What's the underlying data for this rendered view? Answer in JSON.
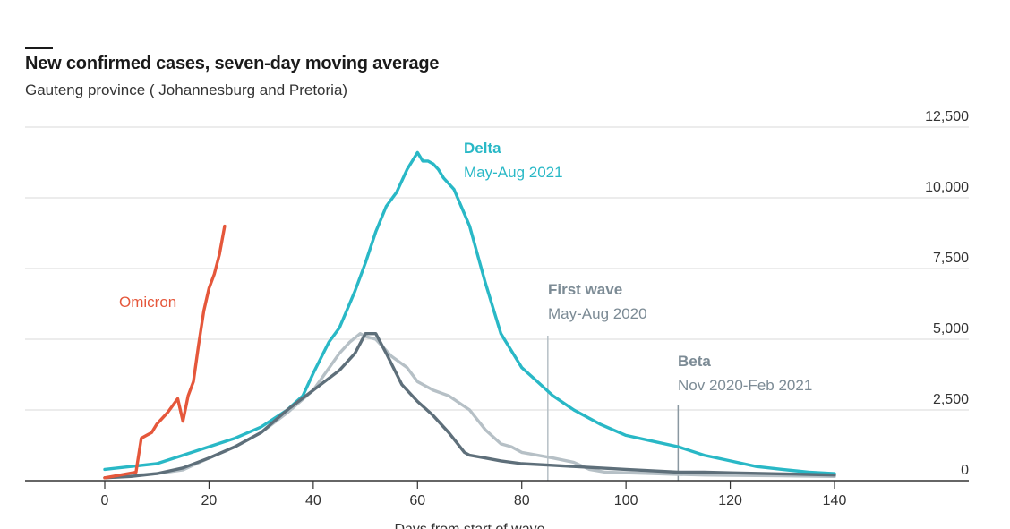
{
  "header": {
    "title": "New confirmed cases, seven-day moving average",
    "subtitle": "Gauteng province ( Johannesburg and Pretoria)"
  },
  "chart_data": {
    "type": "line",
    "title": "New confirmed cases, seven-day moving average",
    "subtitle": "Gauteng province ( Johannesburg and Pretoria)",
    "xlabel": "Days from start of wave",
    "ylabel": "",
    "xlim": [
      -15,
      165
    ],
    "ylim": [
      0,
      12500
    ],
    "x_ticks": [
      0,
      20,
      40,
      60,
      80,
      100,
      120,
      140
    ],
    "x_tick_labels": [
      "0",
      "20",
      "40",
      "60",
      "80",
      "100",
      "120",
      "140"
    ],
    "y_ticks": [
      0,
      2500,
      5000,
      7500,
      10000,
      12500
    ],
    "y_tick_labels": [
      "0",
      "2,500",
      "5,000",
      "7,500",
      "10,000",
      "12,500"
    ],
    "grid": "horizontal",
    "y_axis_side": "right",
    "colors": {
      "delta": "#29b8c6",
      "first_wave": "#b6c0c6",
      "beta": "#5e6f7a",
      "omicron": "#e5573b",
      "grid": "#d9d9d9",
      "axis": "#333333",
      "label_grey": "#7c8b95"
    },
    "series": [
      {
        "name": "First wave",
        "label": "First wave",
        "period": "May-Aug 2020",
        "color": "#b6c0c6",
        "x": [
          0,
          5,
          10,
          15,
          20,
          25,
          30,
          35,
          40,
          45,
          47,
          49,
          50,
          52,
          55,
          58,
          60,
          63,
          66,
          70,
          73,
          76,
          78,
          80,
          83,
          86,
          90,
          93,
          96,
          100,
          105,
          110,
          115,
          120,
          125,
          130,
          135,
          140
        ],
        "y": [
          100,
          180,
          250,
          380,
          800,
          1200,
          1700,
          2400,
          3200,
          4500,
          4900,
          5200,
          5100,
          5000,
          4400,
          4000,
          3500,
          3200,
          3000,
          2500,
          1800,
          1300,
          1200,
          1000,
          900,
          800,
          650,
          400,
          300,
          280,
          250,
          220,
          200,
          190,
          180,
          170,
          160,
          150
        ]
      },
      {
        "name": "Delta",
        "label": "Delta",
        "period": "May-Aug 2021",
        "color": "#29b8c6",
        "x": [
          0,
          5,
          10,
          15,
          20,
          25,
          30,
          35,
          38,
          40,
          43,
          45,
          48,
          50,
          52,
          54,
          56,
          58,
          60,
          61,
          62,
          63,
          64,
          65,
          67,
          70,
          73,
          76,
          80,
          83,
          86,
          90,
          95,
          100,
          105,
          110,
          115,
          120,
          125,
          130,
          135,
          140
        ],
        "y": [
          400,
          500,
          600,
          900,
          1200,
          1500,
          1900,
          2500,
          3000,
          3800,
          4900,
          5400,
          6700,
          7700,
          8800,
          9700,
          10200,
          11000,
          11600,
          11300,
          11300,
          11200,
          11000,
          10700,
          10300,
          9000,
          7000,
          5200,
          4000,
          3500,
          3000,
          2500,
          2000,
          1600,
          1400,
          1200,
          900,
          700,
          500,
          400,
          300,
          250
        ]
      },
      {
        "name": "Beta",
        "label": "Beta",
        "period": "Nov 2020-Feb 2021",
        "color": "#5e6f7a",
        "x": [
          0,
          5,
          10,
          15,
          20,
          25,
          30,
          35,
          40,
          45,
          48,
          50,
          52,
          54,
          57,
          60,
          63,
          66,
          69,
          70,
          73,
          76,
          80,
          85,
          90,
          95,
          100,
          105,
          110,
          115,
          120,
          125,
          130,
          135,
          140
        ],
        "y": [
          100,
          150,
          250,
          450,
          800,
          1200,
          1700,
          2500,
          3200,
          3900,
          4500,
          5200,
          5200,
          4500,
          3400,
          2800,
          2300,
          1700,
          1000,
          900,
          800,
          700,
          600,
          550,
          500,
          450,
          400,
          350,
          300,
          300,
          280,
          260,
          240,
          220,
          200
        ]
      },
      {
        "name": "Omicron",
        "label": "Omicron",
        "period": "",
        "color": "#e5573b",
        "x": [
          0,
          3,
          6,
          7,
          8,
          9,
          10,
          12,
          14,
          15,
          16,
          17,
          18,
          19,
          20,
          21,
          22,
          23
        ],
        "y": [
          100,
          200,
          300,
          1500,
          1600,
          1700,
          2000,
          2400,
          2900,
          2100,
          3000,
          3500,
          4800,
          6000,
          6800,
          7300,
          8000,
          9000
        ]
      }
    ],
    "annotations": [
      {
        "series": "Delta",
        "text": "Delta",
        "subtext": "May-Aug 2021"
      },
      {
        "series": "First wave",
        "text": "First wave",
        "subtext": "May-Aug 2020",
        "marker_x": 85
      },
      {
        "series": "Beta",
        "text": "Beta",
        "subtext": "Nov 2020-Feb 2021",
        "marker_x": 110
      },
      {
        "series": "Omicron",
        "text": "Omicron",
        "subtext": ""
      }
    ]
  }
}
